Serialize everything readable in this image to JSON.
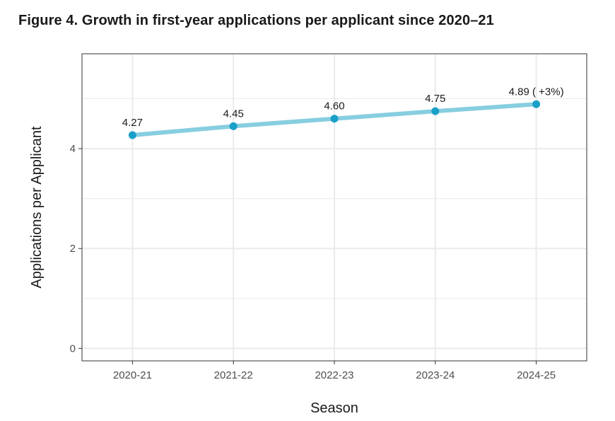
{
  "figure_title": "Figure 4. Growth in first-year applications per applicant since 2020–21",
  "chart_data": {
    "type": "line",
    "title": "Figure 4. Growth in first-year applications per applicant since 2020–21",
    "xlabel": "Season",
    "ylabel": "Applications per Applicant",
    "categories": [
      "2020-21",
      "2021-22",
      "2022-23",
      "2023-24",
      "2024-25"
    ],
    "values": [
      4.27,
      4.45,
      4.6,
      4.75,
      4.89
    ],
    "data_labels": [
      "4.27",
      "4.45",
      "4.60",
      "4.75",
      "4.89 ( +3%)"
    ],
    "ylim": [
      -0.25,
      5.9
    ],
    "yticks": [
      0,
      2,
      4
    ],
    "ytick_labels": [
      "0",
      "2",
      "4"
    ],
    "grid": true,
    "colors": {
      "line": "#87cee0",
      "point": "#1aa0c8",
      "grid": "#ebebeb",
      "border": "#333333",
      "text": "#1a1a1a",
      "tick_text": "#4d4d4d"
    }
  }
}
